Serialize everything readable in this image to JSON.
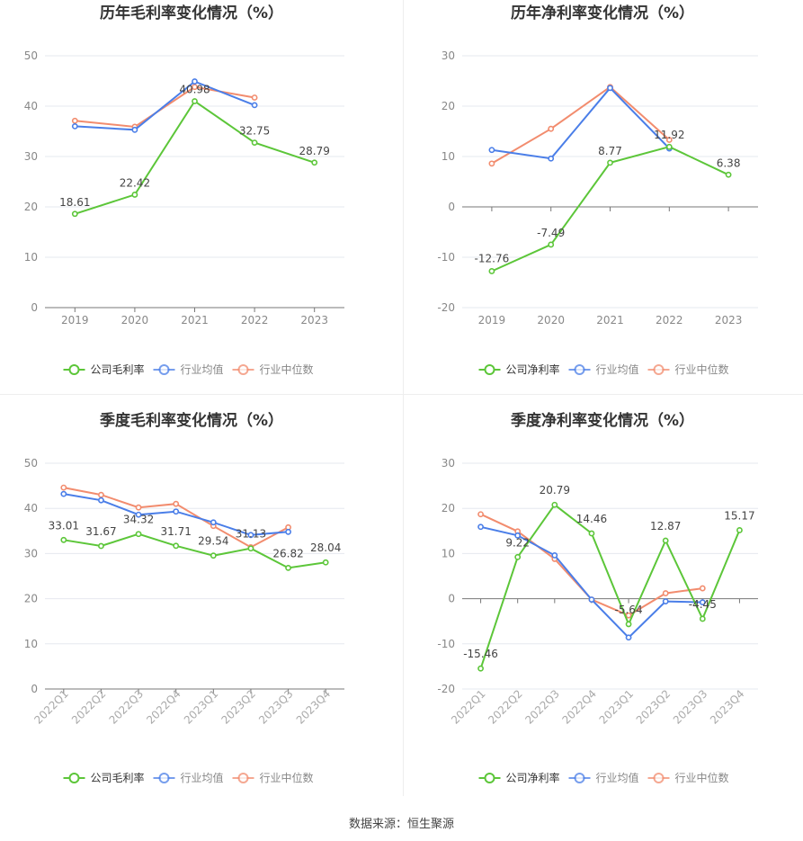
{
  "colors": {
    "company": "#5cc639",
    "industry_avg": "#4a7ee8",
    "industry_median": "#f28c6e"
  },
  "chart_data": [
    {
      "type": "line",
      "title": "历年毛利率变化情况（%）",
      "categories": [
        "2019",
        "2020",
        "2021",
        "2022",
        "2023"
      ],
      "ylim": [
        0,
        50
      ],
      "yticks": [
        0,
        10,
        20,
        30,
        40,
        50
      ],
      "series": [
        {
          "name": "公司毛利率",
          "values": [
            18.61,
            22.42,
            40.98,
            32.75,
            28.79
          ],
          "labels": [
            "18.61",
            "22.42",
            "40.98",
            "32.75",
            "28.79"
          ]
        },
        {
          "name": "行业均值",
          "values": [
            36.0,
            35.3,
            44.9,
            40.2,
            null
          ]
        },
        {
          "name": "行业中位数",
          "values": [
            37.1,
            35.9,
            43.8,
            41.7,
            null
          ]
        }
      ],
      "legend": "bottom",
      "grid": true
    },
    {
      "type": "line",
      "title": "历年净利率变化情况（%）",
      "categories": [
        "2019",
        "2020",
        "2021",
        "2022",
        "2023"
      ],
      "ylim": [
        -20,
        30
      ],
      "yticks": [
        -20,
        -10,
        0,
        10,
        20,
        30
      ],
      "series": [
        {
          "name": "公司净利率",
          "values": [
            -12.76,
            -7.49,
            8.77,
            11.92,
            6.38
          ],
          "labels": [
            "-12.76",
            "-7.49",
            "8.77",
            "11.92",
            "6.38"
          ]
        },
        {
          "name": "行业均值",
          "values": [
            11.3,
            9.6,
            23.6,
            11.6,
            null
          ]
        },
        {
          "name": "行业中位数",
          "values": [
            8.6,
            15.5,
            23.8,
            13.3,
            null
          ]
        }
      ],
      "legend": "bottom",
      "grid": true
    },
    {
      "type": "line",
      "title": "季度毛利率变化情况（%）",
      "categories": [
        "2022Q1",
        "2022Q2",
        "2022Q3",
        "2022Q4",
        "2023Q1",
        "2023Q2",
        "2023Q3",
        "2023Q4"
      ],
      "ylim": [
        0,
        50
      ],
      "yticks": [
        0,
        10,
        20,
        30,
        40,
        50
      ],
      "series": [
        {
          "name": "公司毛利率",
          "values": [
            33.01,
            31.67,
            34.32,
            31.71,
            29.54,
            31.13,
            26.82,
            28.04
          ],
          "labels": [
            "33.01",
            "31.67",
            "34.32",
            "31.71",
            "29.54",
            "31.13",
            "26.82",
            "28.04"
          ]
        },
        {
          "name": "行业均值",
          "values": [
            43.2,
            41.8,
            38.6,
            39.3,
            36.9,
            34.1,
            34.8,
            null
          ]
        },
        {
          "name": "行业中位数",
          "values": [
            44.6,
            43.0,
            40.2,
            41.0,
            36.1,
            31.4,
            35.8,
            null
          ]
        }
      ],
      "legend": "bottom",
      "grid": true
    },
    {
      "type": "line",
      "title": "季度净利率变化情况（%）",
      "categories": [
        "2022Q1",
        "2022Q2",
        "2022Q3",
        "2022Q4",
        "2023Q1",
        "2023Q2",
        "2023Q3",
        "2023Q4"
      ],
      "ylim": [
        -20,
        30
      ],
      "yticks": [
        -20,
        -10,
        0,
        10,
        20,
        30
      ],
      "series": [
        {
          "name": "公司净利率",
          "values": [
            -15.46,
            9.22,
            20.79,
            14.46,
            -5.64,
            12.87,
            -4.45,
            15.17
          ],
          "labels": [
            "-15.46",
            "9.22",
            "20.79",
            "14.46",
            "-5.64",
            "12.87",
            "-4.45",
            "15.17"
          ]
        },
        {
          "name": "行业均值",
          "values": [
            15.9,
            14.0,
            9.6,
            -0.2,
            -8.6,
            -0.6,
            -0.8,
            null
          ]
        },
        {
          "name": "行业中位数",
          "values": [
            18.7,
            14.9,
            8.8,
            -0.2,
            -3.7,
            1.2,
            2.3,
            null
          ]
        }
      ],
      "legend": "bottom",
      "grid": true
    }
  ],
  "footer": {
    "source": "数据来源：恒生聚源"
  }
}
